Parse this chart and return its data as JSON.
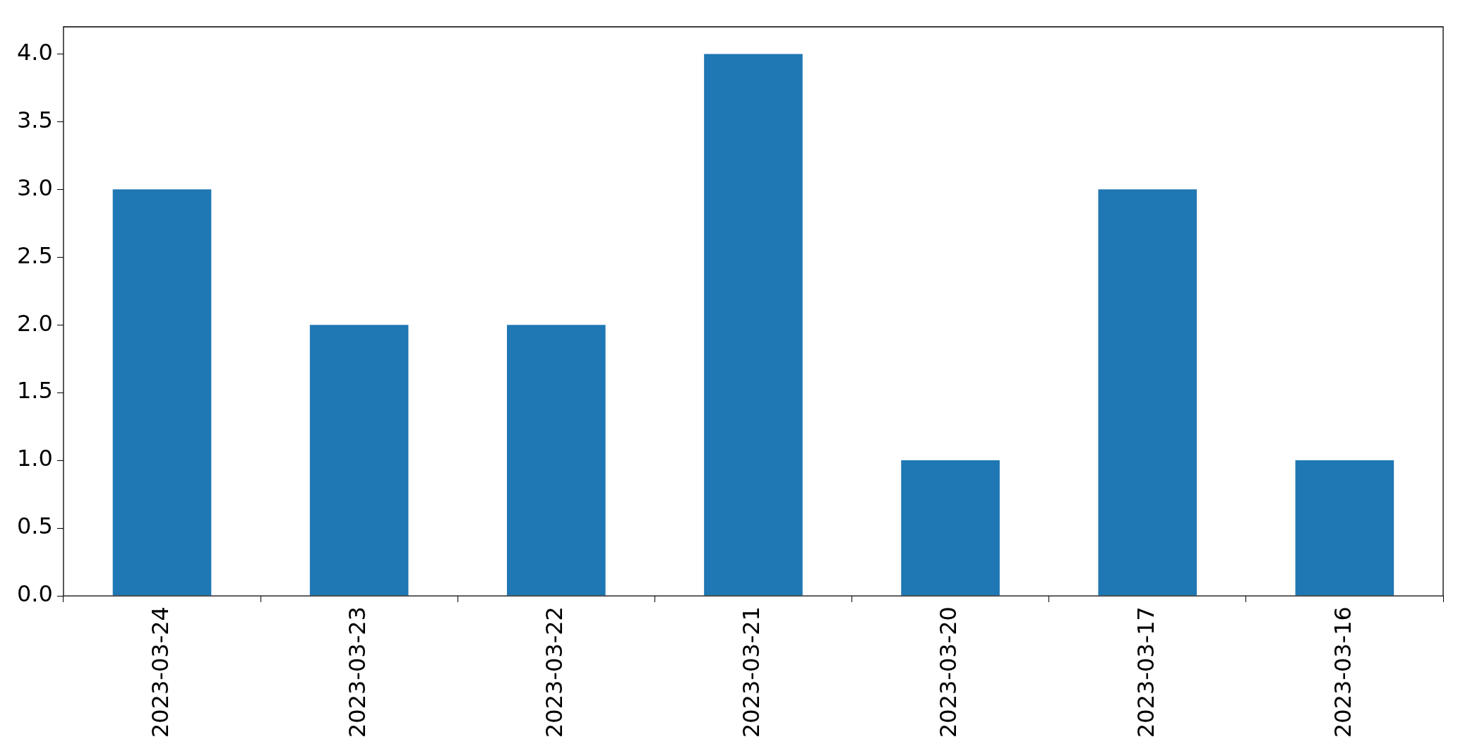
{
  "chart_data": {
    "type": "bar",
    "categories": [
      "2023-03-24",
      "2023-03-23",
      "2023-03-22",
      "2023-03-21",
      "2023-03-20",
      "2023-03-17",
      "2023-03-16"
    ],
    "values": [
      3,
      2,
      2,
      4,
      1,
      3,
      1
    ],
    "color": "#1f77b4",
    "ylim": [
      0,
      4.2
    ],
    "yticks": [
      {
        "value": 0,
        "label": "0.0"
      },
      0.5,
      {
        "value": 1,
        "label": "1.0"
      },
      1.5,
      {
        "value": 2,
        "label": "2.0"
      },
      2.5,
      {
        "value": 3,
        "label": "3.0"
      },
      3.5,
      {
        "value": 4,
        "label": "4.0"
      }
    ],
    "grid": false,
    "legend": false
  }
}
